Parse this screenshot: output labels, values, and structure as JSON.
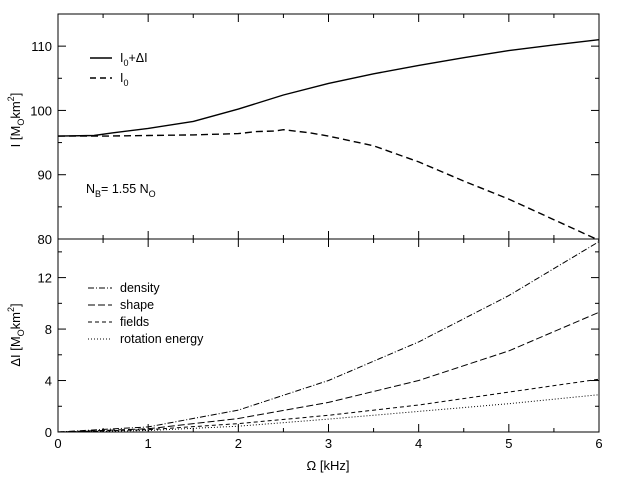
{
  "chart_data": [
    {
      "type": "line",
      "panel": "top",
      "ylabel_main": "I [M",
      "ylabel_sub": "O",
      "ylabel_mid": "km",
      "ylabel_sup": "2",
      "ylabel_end": "]",
      "xlim": [
        0,
        6
      ],
      "ylim": [
        80,
        115
      ],
      "yticks": [
        80,
        90,
        100,
        110
      ],
      "annotation": {
        "main": "N",
        "sub1": "B",
        "mid": "= 1.55 N",
        "sub2": "O"
      },
      "series": [
        {
          "name": "I0+ΔI",
          "legend_main": "I",
          "legend_sub": "0",
          "legend_rest": "+ΔI",
          "style": "solid",
          "x": [
            0,
            0.4,
            0.6,
            1.0,
            1.5,
            2.0,
            2.5,
            3.0,
            3.5,
            4.0,
            4.5,
            5.0,
            5.5,
            6.0
          ],
          "y": [
            96.0,
            96.1,
            96.5,
            97.2,
            98.3,
            100.2,
            102.4,
            104.2,
            105.7,
            107.0,
            108.2,
            109.3,
            110.2,
            111.0
          ]
        },
        {
          "name": "I0",
          "legend_main": "I",
          "legend_sub": "0",
          "legend_rest": "",
          "style": "dashed",
          "x": [
            0,
            0.5,
            1.0,
            1.5,
            2.0,
            2.2,
            2.4,
            2.5,
            2.8,
            3.0,
            3.5,
            4.0,
            4.5,
            5.0,
            5.5,
            6.0
          ],
          "y": [
            96.0,
            96.0,
            96.1,
            96.2,
            96.4,
            96.7,
            96.8,
            97.0,
            96.5,
            96.0,
            94.5,
            92.0,
            89.0,
            86.2,
            83.0,
            79.8
          ]
        }
      ]
    },
    {
      "type": "line",
      "panel": "bottom",
      "xlabel": "Ω [kHz]",
      "ylabel_main": "ΔI [M",
      "ylabel_sub": "O",
      "ylabel_mid": "km",
      "ylabel_sup": "2",
      "ylabel_end": "]",
      "xlim": [
        0,
        6
      ],
      "ylim": [
        0,
        15
      ],
      "xticks": [
        0,
        1,
        2,
        3,
        4,
        5,
        6
      ],
      "yticks": [
        0,
        4,
        8,
        12
      ],
      "series": [
        {
          "name": "density",
          "style": "dashdot",
          "x": [
            0,
            1,
            2,
            3,
            4,
            5,
            6
          ],
          "y": [
            0,
            0.4,
            1.7,
            4.0,
            7.0,
            10.6,
            14.8
          ]
        },
        {
          "name": "shape",
          "style": "longdash",
          "x": [
            0,
            1,
            2,
            3,
            4,
            5,
            6
          ],
          "y": [
            0,
            0.25,
            1.05,
            2.3,
            4.0,
            6.3,
            9.3
          ]
        },
        {
          "name": "fields",
          "style": "shortdash",
          "x": [
            0,
            1,
            2,
            3,
            4,
            5,
            6
          ],
          "y": [
            0,
            0.18,
            0.65,
            1.3,
            2.1,
            3.1,
            4.1
          ]
        },
        {
          "name": "rotation energy",
          "style": "dotted",
          "x": [
            0,
            1,
            2,
            3,
            4,
            5,
            6
          ],
          "y": [
            0,
            0.12,
            0.45,
            1.0,
            1.6,
            2.2,
            2.9
          ]
        }
      ]
    }
  ]
}
